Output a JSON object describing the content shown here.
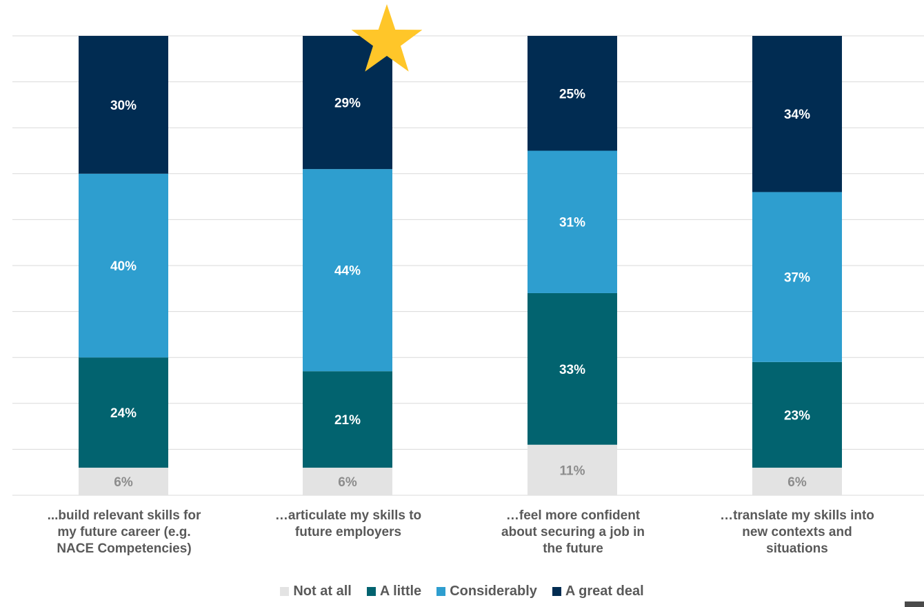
{
  "title": "",
  "colors": {
    "Not at all": "#e3e3e3",
    "A little": "#02636f",
    "Considerably": "#2e9ecf",
    "A great deal": "#012c52",
    "grid": "#d9d9d9",
    "star": "#ffc629"
  },
  "chart_data": {
    "type": "bar",
    "stacked": true,
    "orientation": "vertical",
    "categories": [
      "...build relevant skills for my future career (e.g. NACE Competencies)",
      "…articulate my skills to future employers",
      "…feel more confident about securing a job in the future",
      "…translate my skills into new contexts and situations"
    ],
    "series": [
      {
        "name": "Not at all",
        "values": [
          6,
          6,
          11,
          6
        ],
        "labels": [
          "6%",
          "6%",
          "11%",
          "6%"
        ]
      },
      {
        "name": "A little",
        "values": [
          24,
          21,
          33,
          23
        ],
        "labels": [
          "24%",
          "21%",
          "33%",
          "23%"
        ]
      },
      {
        "name": "Considerably",
        "values": [
          40,
          44,
          31,
          37
        ],
        "labels": [
          "40%",
          "44%",
          "31%",
          "37%"
        ]
      },
      {
        "name": "A great deal",
        "values": [
          30,
          29,
          25,
          34
        ],
        "labels": [
          "30%",
          "29%",
          "25%",
          "34%"
        ]
      }
    ],
    "ylim": [
      0,
      100
    ],
    "grid": true,
    "legend": "bottom",
    "annotations": [
      {
        "type": "star",
        "category_index": 1
      }
    ]
  },
  "legend": [
    "Not at all",
    "A little",
    "Considerably",
    "A great deal"
  ]
}
